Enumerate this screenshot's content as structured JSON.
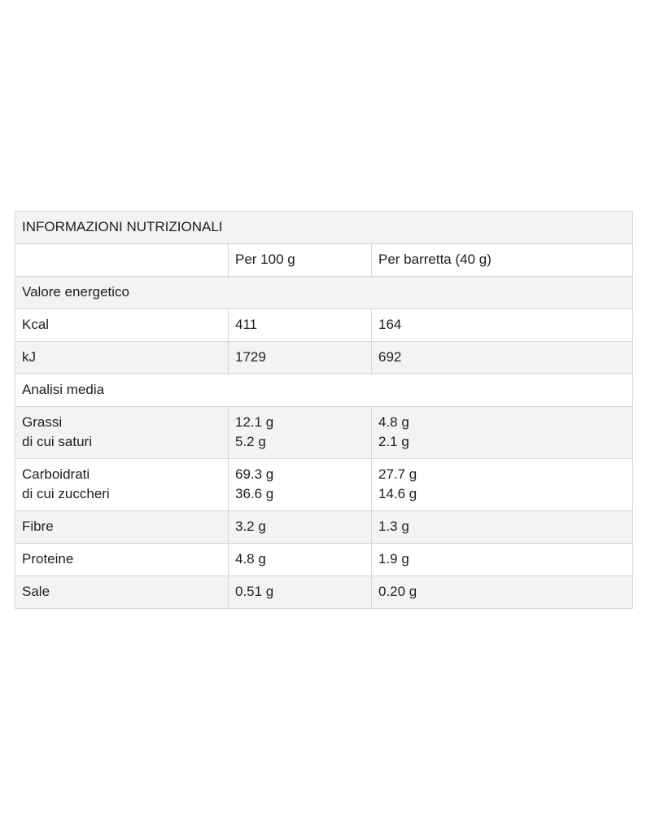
{
  "table": {
    "title": "INFORMAZIONI NUTRIZIONALI",
    "header": [
      "Per 100 g",
      "Per barretta (40 g)"
    ],
    "rows": [
      {
        "section": "Valore energetico"
      },
      {
        "cells": [
          [
            "Kcal"
          ],
          [
            "411"
          ],
          [
            "164"
          ]
        ]
      },
      {
        "cells": [
          [
            "kJ"
          ],
          [
            "1729"
          ],
          [
            "692"
          ]
        ]
      },
      {
        "section": "Analisi media"
      },
      {
        "cells": [
          [
            "Grassi",
            "di cui saturi"
          ],
          [
            "12.1 g",
            "5.2 g"
          ],
          [
            "4.8 g",
            "2.1 g"
          ]
        ]
      },
      {
        "cells": [
          [
            "Carboidrati",
            "di cui zuccheri"
          ],
          [
            "69.3 g",
            "36.6 g"
          ],
          [
            "27.7 g",
            "14.6 g"
          ]
        ]
      },
      {
        "cells": [
          [
            "Fibre"
          ],
          [
            "3.2 g"
          ],
          [
            "1.3 g"
          ]
        ]
      },
      {
        "cells": [
          [
            "Proteine"
          ],
          [
            "4.8 g"
          ],
          [
            "1.9 g"
          ]
        ]
      },
      {
        "cells": [
          [
            "Sale"
          ],
          [
            "0.51 g"
          ],
          [
            "0.20 g"
          ]
        ]
      }
    ]
  }
}
